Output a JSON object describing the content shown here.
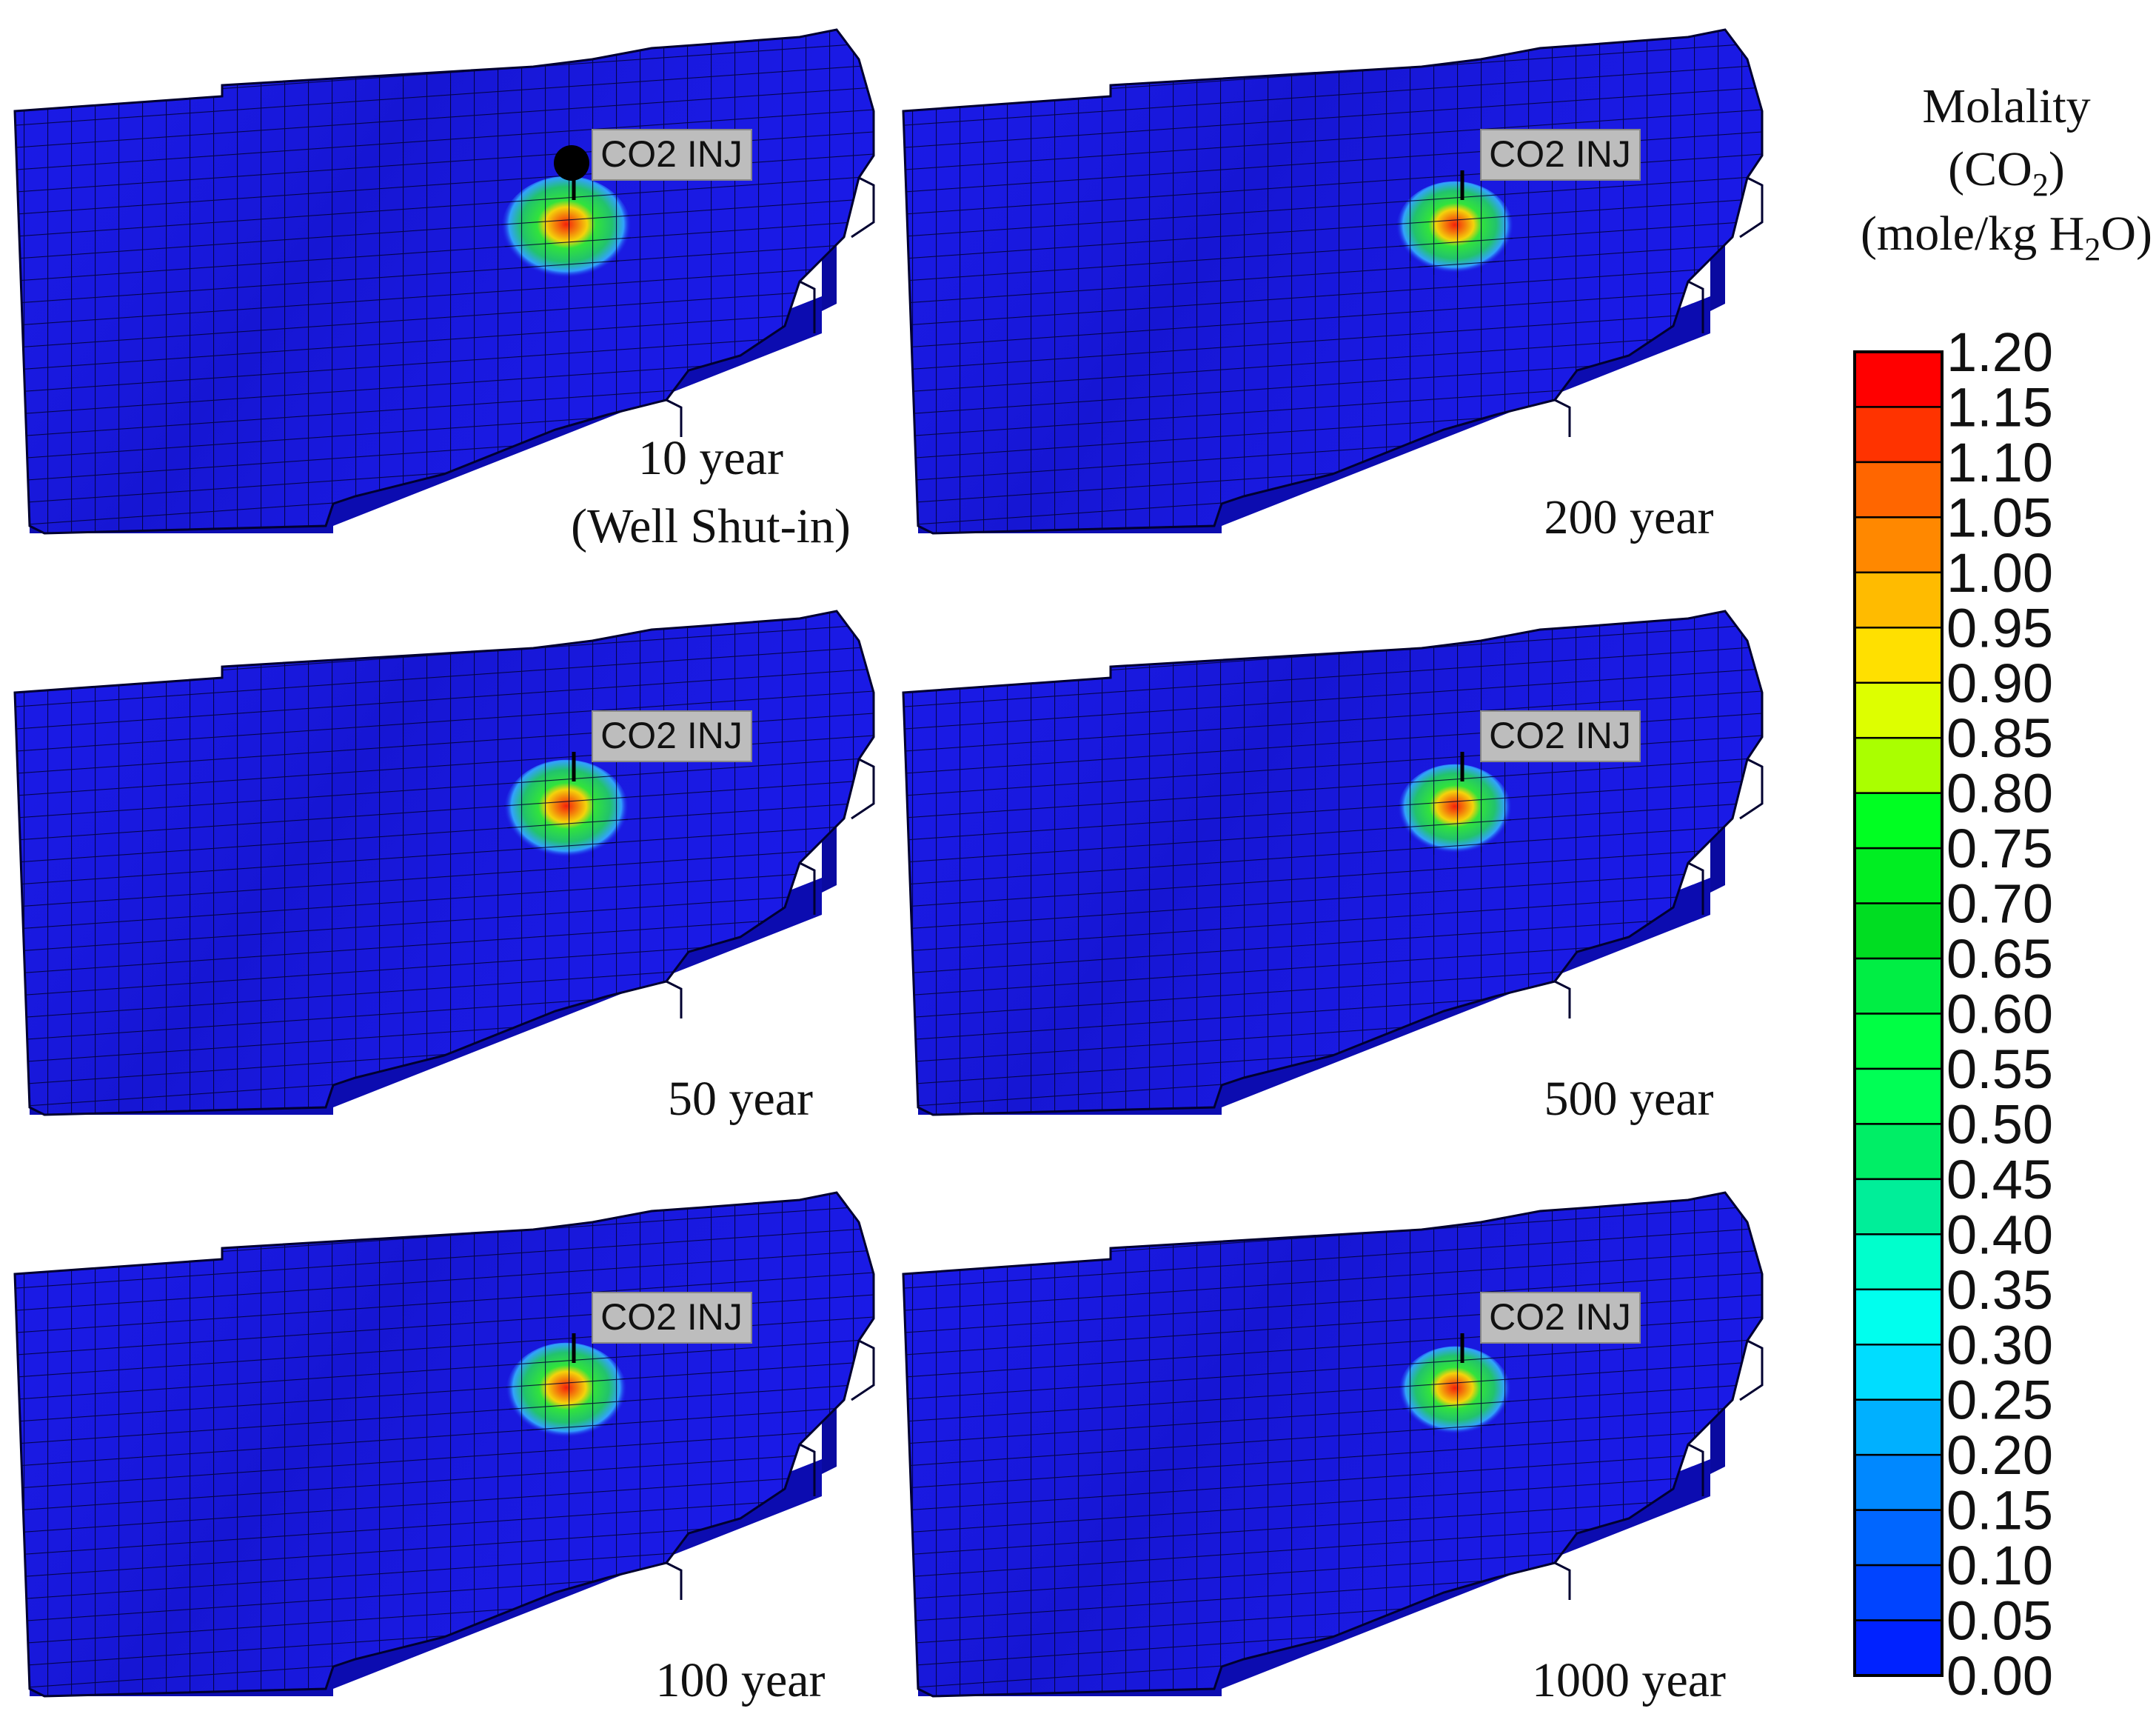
{
  "panels": [
    {
      "id": "p10",
      "caption_lines": [
        "10 year",
        "(Well Shut-in)"
      ],
      "well_label": "CO2 INJ",
      "show_well_marker": true,
      "plume_peak": 1.15
    },
    {
      "id": "p200",
      "caption_lines": [
        "200 year"
      ],
      "well_label": "CO2 INJ",
      "show_well_marker": false,
      "plume_peak": 1.08
    },
    {
      "id": "p50",
      "caption_lines": [
        "50 year"
      ],
      "well_label": "CO2 INJ",
      "show_well_marker": false,
      "plume_peak": 1.12
    },
    {
      "id": "p500",
      "caption_lines": [
        "500 year"
      ],
      "well_label": "CO2 INJ",
      "show_well_marker": false,
      "plume_peak": 1.06
    },
    {
      "id": "p100",
      "caption_lines": [
        "100 year"
      ],
      "well_label": "CO2 INJ",
      "show_well_marker": false,
      "plume_peak": 1.1
    },
    {
      "id": "p1000",
      "caption_lines": [
        "1000 year"
      ],
      "well_label": "CO2 INJ",
      "show_well_marker": false,
      "plume_peak": 1.05
    }
  ],
  "legend": {
    "title_line1": "Molality",
    "title_line2_pre": "(CO",
    "title_line2_sub": "2",
    "title_line2_post": ")",
    "title_line3_pre": "(mole/kg H",
    "title_line3_sub": "2",
    "title_line3_post": "O)",
    "ticks": [
      "1.20",
      "1.15",
      "1.10",
      "1.05",
      "1.00",
      "0.95",
      "0.90",
      "0.85",
      "0.80",
      "0.75",
      "0.70",
      "0.65",
      "0.60",
      "0.55",
      "0.50",
      "0.45",
      "0.40",
      "0.35",
      "0.30",
      "0.25",
      "0.20",
      "0.15",
      "0.10",
      "0.05",
      "0.00"
    ],
    "colors_top_to_bottom": [
      "#ff0000",
      "#ff3300",
      "#ff6600",
      "#ff8800",
      "#ffbb00",
      "#ffe000",
      "#ddff00",
      "#aaff00",
      "#00ff22",
      "#00ee22",
      "#00dd22",
      "#00ee44",
      "#00ff44",
      "#00ff55",
      "#00ee66",
      "#00ee99",
      "#00ffcc",
      "#00ffee",
      "#00ddff",
      "#00b0ff",
      "#0088ff",
      "#0066ff",
      "#0044ff",
      "#0022ff"
    ]
  },
  "colors": {
    "background_mesh": "#1a1ae6",
    "mesh_line": "#000033",
    "well_label_bg": "#bdbdbd"
  }
}
